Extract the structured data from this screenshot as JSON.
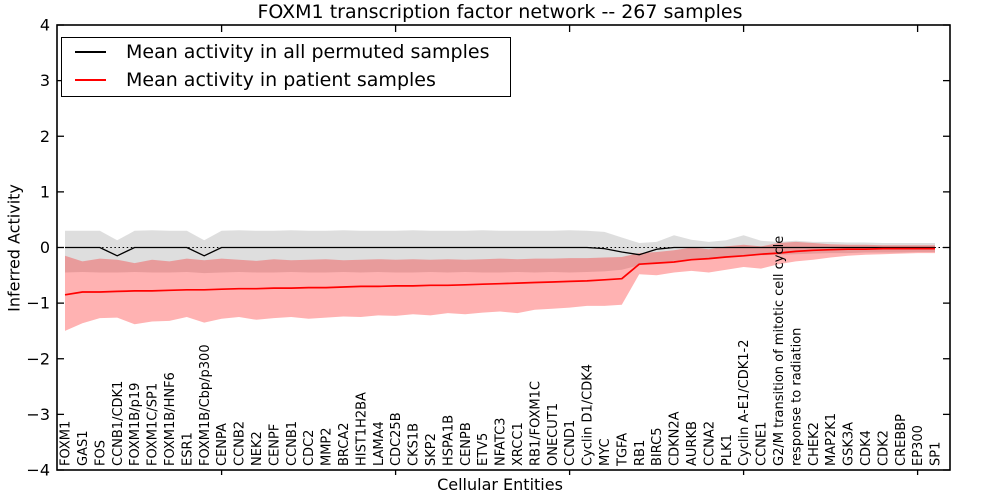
{
  "chart_data": {
    "type": "line",
    "title": "FOXM1 transcription factor network -- 267 samples",
    "xlabel": "Cellular Entities",
    "ylabel": "Inferred Activity",
    "ylim": [
      -4,
      4
    ],
    "yticks": [
      -4,
      -3,
      -2,
      -1,
      0,
      1,
      2,
      3,
      4
    ],
    "x_major_tick_indices": [
      9,
      19,
      29,
      39,
      49
    ],
    "grid": false,
    "legend_position": "upper-left",
    "zero_line_style": "dotted",
    "background_color": "#ffffff",
    "categories": [
      "FOXM1",
      "GAS1",
      "FOS",
      "CCNB1/CDK1",
      "FOXM1B/p19",
      "FOXM1C/SP1",
      "FOXM1B/HNF6",
      "ESR1",
      "FOXM1B/Cbp/p300",
      "CENPA",
      "CCNB2",
      "NEK2",
      "CENPF",
      "CCNB1",
      "CDC2",
      "MMP2",
      "BRCA2",
      "HIST1H2BA",
      "LAMA4",
      "CDC25B",
      "CKS1B",
      "SKP2",
      "HSPA1B",
      "CENPB",
      "ETV5",
      "NFATC3",
      "XRCC1",
      "RB1/FOXM1C",
      "ONECUT1",
      "CCND1",
      "Cyclin D1/CDK4",
      "MYC",
      "TGFA",
      "RB1",
      "BIRC5",
      "CDKN2A",
      "AURKB",
      "CCNA2",
      "PLK1",
      "Cyclin A-E1/CDK1-2",
      "CCNE1",
      "G2/M transition of mitotic cell cycle",
      "response to radiation",
      "CHEK2",
      "MAP2K1",
      "GSK3A",
      "CDK4",
      "CDK2",
      "CREBBP",
      "EP300",
      "SP1"
    ],
    "series": [
      {
        "key": "permuted",
        "name": "Mean activity in all permuted samples",
        "color": "#000000",
        "line_width": 1.3,
        "band_color": "#000000",
        "band_opacity": 0.13,
        "values": [
          0,
          0,
          0,
          -0.15,
          0,
          0,
          0,
          0,
          -0.15,
          0,
          0,
          0,
          0,
          0,
          0,
          0,
          0,
          0,
          0,
          0,
          0,
          0,
          0,
          0,
          0,
          0,
          0,
          0,
          0,
          0,
          0,
          -0.02,
          -0.08,
          -0.13,
          -0.03,
          0,
          0,
          0,
          0,
          0,
          0,
          0,
          0,
          0,
          0,
          0,
          0,
          0,
          0,
          0,
          0
        ],
        "band_upper": [
          0.3,
          0.3,
          0.3,
          0.13,
          0.3,
          0.31,
          0.3,
          0.3,
          0.13,
          0.3,
          0.31,
          0.3,
          0.3,
          0.31,
          0.3,
          0.3,
          0.31,
          0.3,
          0.3,
          0.3,
          0.31,
          0.3,
          0.3,
          0.3,
          0.31,
          0.3,
          0.3,
          0.3,
          0.3,
          0.31,
          0.3,
          0.28,
          0.18,
          0.08,
          0.1,
          0.22,
          0.14,
          0.1,
          0.13,
          0.22,
          0.12,
          0.1,
          0.12,
          0.1,
          0.1,
          0.09,
          0.09,
          0.08,
          0.08,
          0.08,
          0.08
        ],
        "band_lower": [
          -0.45,
          -0.44,
          -0.45,
          -0.45,
          -0.44,
          -0.45,
          -0.45,
          -0.44,
          -0.46,
          -0.45,
          -0.44,
          -0.45,
          -0.45,
          -0.44,
          -0.45,
          -0.45,
          -0.44,
          -0.45,
          -0.44,
          -0.45,
          -0.45,
          -0.44,
          -0.45,
          -0.44,
          -0.45,
          -0.45,
          -0.44,
          -0.45,
          -0.44,
          -0.45,
          -0.44,
          -0.43,
          -0.4,
          -0.32,
          -0.27,
          -0.24,
          -0.21,
          -0.19,
          -0.17,
          -0.16,
          -0.14,
          -0.13,
          -0.12,
          -0.11,
          -0.1,
          -0.1,
          -0.09,
          -0.09,
          -0.09,
          -0.08,
          -0.08
        ]
      },
      {
        "key": "patient",
        "name": "Mean activity in patient samples",
        "color": "#ff0000",
        "line_width": 1.7,
        "band_color": "#ff0000",
        "band_opacity": 0.3,
        "values": [
          -0.85,
          -0.8,
          -0.8,
          -0.79,
          -0.78,
          -0.78,
          -0.77,
          -0.76,
          -0.76,
          -0.75,
          -0.74,
          -0.74,
          -0.73,
          -0.73,
          -0.72,
          -0.72,
          -0.71,
          -0.7,
          -0.7,
          -0.69,
          -0.69,
          -0.68,
          -0.68,
          -0.67,
          -0.66,
          -0.65,
          -0.64,
          -0.63,
          -0.62,
          -0.61,
          -0.6,
          -0.58,
          -0.56,
          -0.3,
          -0.28,
          -0.26,
          -0.22,
          -0.2,
          -0.17,
          -0.15,
          -0.12,
          -0.1,
          -0.07,
          -0.05,
          -0.04,
          -0.03,
          -0.03,
          -0.02,
          -0.02,
          -0.02,
          -0.02
        ],
        "band_upper": [
          -0.15,
          -0.25,
          -0.2,
          -0.22,
          -0.28,
          -0.22,
          -0.25,
          -0.2,
          -0.23,
          -0.2,
          -0.22,
          -0.24,
          -0.21,
          -0.23,
          -0.22,
          -0.21,
          -0.23,
          -0.22,
          -0.21,
          -0.22,
          -0.21,
          -0.22,
          -0.21,
          -0.22,
          -0.21,
          -0.2,
          -0.21,
          -0.2,
          -0.2,
          -0.19,
          -0.19,
          -0.18,
          -0.17,
          -0.1,
          -0.08,
          -0.05,
          0.0,
          -0.03,
          0.02,
          0.05,
          0.02,
          0.08,
          0.1,
          0.08,
          0.06,
          0.05,
          0.05,
          0.04,
          0.04,
          0.04,
          0.04
        ],
        "band_lower": [
          -1.5,
          -1.36,
          -1.27,
          -1.26,
          -1.38,
          -1.33,
          -1.32,
          -1.25,
          -1.35,
          -1.28,
          -1.25,
          -1.3,
          -1.27,
          -1.25,
          -1.28,
          -1.26,
          -1.24,
          -1.25,
          -1.22,
          -1.23,
          -1.2,
          -1.22,
          -1.18,
          -1.2,
          -1.17,
          -1.15,
          -1.18,
          -1.12,
          -1.1,
          -1.08,
          -1.05,
          -1.05,
          -1.03,
          -0.48,
          -0.5,
          -0.45,
          -0.42,
          -0.45,
          -0.4,
          -0.35,
          -0.38,
          -0.3,
          -0.25,
          -0.22,
          -0.18,
          -0.15,
          -0.13,
          -0.12,
          -0.11,
          -0.1,
          -0.1
        ]
      }
    ]
  }
}
